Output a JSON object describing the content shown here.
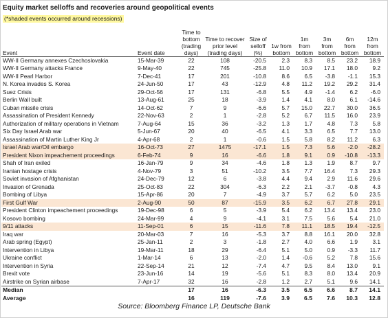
{
  "title": "Equity market selloffs and recoveries around geopolitical events",
  "note": "(*shaded events occurred around recessions)",
  "columns": {
    "event": "Event",
    "date": "Event date",
    "bottom": "Time to bottom (trading days)",
    "recover": "Time to recover prior level (trading days)",
    "size": "Size of selloff (%)",
    "w1": "1w from bottom",
    "m1": "1m from bottom",
    "m3": "3m from bottom",
    "m6": "6m from bottom",
    "m12": "12m from bottom"
  },
  "rows": [
    {
      "event": "WW-II Germany annexes Czechoslovakia",
      "date": "15-Mar-39",
      "bottom": "22",
      "recover": "108",
      "size": "-20.5",
      "w1": "2.3",
      "m1": "8.3",
      "m3": "8.5",
      "m6": "23.2",
      "m12": "18.9",
      "shaded": false
    },
    {
      "event": "WW-II Germany attacks France",
      "date": "9-May-40",
      "bottom": "22",
      "recover": "745",
      "size": "-25.8",
      "w1": "11.0",
      "m1": "10.9",
      "m3": "17.1",
      "m6": "18.0",
      "m12": "9.2",
      "shaded": false
    },
    {
      "event": "WW-II Pearl Harbor",
      "date": "7-Dec-41",
      "bottom": "17",
      "recover": "201",
      "size": "-10.8",
      "w1": "8.6",
      "m1": "6.5",
      "m3": "-3.8",
      "m6": "-1.1",
      "m12": "15.3",
      "shaded": false
    },
    {
      "event": "N. Korea invades S. Korea",
      "date": "24-Jun-50",
      "bottom": "17",
      "recover": "43",
      "size": "-12.9",
      "w1": "4.8",
      "m1": "11.2",
      "m3": "19.2",
      "m6": "29.2",
      "m12": "31.4",
      "shaded": false
    },
    {
      "event": "Suez Crisis",
      "date": "29-Oct-56",
      "bottom": "17",
      "recover": "131",
      "size": "-6.8",
      "w1": "5.5",
      "m1": "4.9",
      "m3": "-1.4",
      "m6": "6.2",
      "m12": "-6.0",
      "shaded": false
    },
    {
      "event": "Berlin Wall built",
      "date": "13-Aug-61",
      "bottom": "25",
      "recover": "18",
      "size": "-3.9",
      "w1": "1.4",
      "m1": "4.1",
      "m3": "8.0",
      "m6": "6.1",
      "m12": "-14.6",
      "shaded": false
    },
    {
      "event": "Cuban missile crisis",
      "date": "14-Oct-62",
      "bottom": "7",
      "recover": "9",
      "size": "-6.6",
      "w1": "5.7",
      "m1": "15.0",
      "m3": "22.7",
      "m6": "30.0",
      "m12": "36.5",
      "shaded": false
    },
    {
      "event": "Assassination of President Kennedy",
      "date": "22-Nov-63",
      "bottom": "2",
      "recover": "1",
      "size": "-2.8",
      "w1": "5.2",
      "m1": "6.7",
      "m3": "11.5",
      "m6": "16.0",
      "m12": "23.9",
      "shaded": false
    },
    {
      "event": "Authorization of military operations in Vietnam",
      "date": "7-Aug-64",
      "bottom": "15",
      "recover": "36",
      "size": "-3.2",
      "w1": "1.3",
      "m1": "1.7",
      "m3": "4.8",
      "m6": "7.3",
      "m12": "5.8",
      "shaded": false
    },
    {
      "event": "Six Day Israel Arab war",
      "date": "5-Jun-67",
      "bottom": "20",
      "recover": "40",
      "size": "-6.5",
      "w1": "4.1",
      "m1": "3.3",
      "m3": "6.5",
      "m6": "7.7",
      "m12": "13.0",
      "shaded": false
    },
    {
      "event": "Assassination of Martin Luther King Jr",
      "date": "4-Apr-68",
      "bottom": "2",
      "recover": "1",
      "size": "-0.6",
      "w1": "1.5",
      "m1": "5.8",
      "m3": "8.2",
      "m6": "11.2",
      "m12": "6.3",
      "shaded": false
    },
    {
      "event": "Israel Arab war/Oil embargo",
      "date": "16-Oct-73",
      "bottom": "27",
      "recover": "1475",
      "size": "-17.1",
      "w1": "1.5",
      "m1": "7.3",
      "m3": "5.6",
      "m6": "-2.0",
      "m12": "-28.2",
      "shaded": true
    },
    {
      "event": "President Nixon impeachement proceedings",
      "date": "6-Feb-74",
      "bottom": "9",
      "recover": "16",
      "size": "-6.6",
      "w1": "1.8",
      "m1": "9.1",
      "m3": "0.9",
      "m6": "-10.8",
      "m12": "-13.3",
      "shaded": true
    },
    {
      "event": "Shah of Iran exiled",
      "date": "16-Jan-79",
      "bottom": "9",
      "recover": "34",
      "size": "-4.6",
      "w1": "1.8",
      "m1": "1.3",
      "m3": "1.9",
      "m6": "8.7",
      "m12": "9.7",
      "shaded": false
    },
    {
      "event": "Iranian hostage crisis",
      "date": "4-Nov-79",
      "bottom": "3",
      "recover": "51",
      "size": "-10.2",
      "w1": "3.5",
      "m1": "7.7",
      "m3": "16.4",
      "m6": "7.3",
      "m12": "29.3",
      "shaded": false
    },
    {
      "event": "Soviet invasion of Afghanistan",
      "date": "24-Dec-79",
      "bottom": "12",
      "recover": "6",
      "size": "-3.8",
      "w1": "4.4",
      "m1": "9.4",
      "m3": "2.9",
      "m6": "11.6",
      "m12": "29.6",
      "shaded": false
    },
    {
      "event": "Invasion of Grenada",
      "date": "25-Oct-83",
      "bottom": "22",
      "recover": "304",
      "size": "-6.3",
      "w1": "2.2",
      "m1": "2.1",
      "m3": "-3.7",
      "m6": "-0.8",
      "m12": "4.3",
      "shaded": false
    },
    {
      "event": "Bombing of Libya",
      "date": "15-Apr-86",
      "bottom": "20",
      "recover": "7",
      "size": "-4.9",
      "w1": "3.7",
      "m1": "5.7",
      "m3": "6.2",
      "m6": "5.0",
      "m12": "23.5",
      "shaded": false
    },
    {
      "event": "First Gulf War",
      "date": "2-Aug-90",
      "bottom": "50",
      "recover": "87",
      "size": "-15.9",
      "w1": "3.5",
      "m1": "6.2",
      "m3": "6.7",
      "m6": "27.8",
      "m12": "29.1",
      "shaded": true
    },
    {
      "event": "President Clinton impeachement proceedings",
      "date": "19-Dec-98",
      "bottom": "6",
      "recover": "5",
      "size": "-3.9",
      "w1": "5.4",
      "m1": "6.2",
      "m3": "13.4",
      "m6": "13.4",
      "m12": "23.0",
      "shaded": false
    },
    {
      "event": "Kosovo bombing",
      "date": "24-Mar-99",
      "bottom": "4",
      "recover": "9",
      "size": "-4.1",
      "w1": "3.1",
      "m1": "7.5",
      "m3": "5.6",
      "m6": "5.4",
      "m12": "21.0",
      "shaded": false
    },
    {
      "event": "9/11 attacks",
      "date": "11-Sep-01",
      "bottom": "6",
      "recover": "15",
      "size": "-11.6",
      "w1": "7.8",
      "m1": "11.1",
      "m3": "18.5",
      "m6": "19.4",
      "m12": "-12.5",
      "shaded": true
    },
    {
      "event": "Iraq war",
      "date": "20-Mar-03",
      "bottom": "7",
      "recover": "16",
      "size": "-5.3",
      "w1": "3.7",
      "m1": "8.8",
      "m3": "16.1",
      "m6": "20.0",
      "m12": "32.8",
      "shaded": false
    },
    {
      "event": "Arab spring (Egypt)",
      "date": "25-Jan-11",
      "bottom": "2",
      "recover": "3",
      "size": "-1.8",
      "w1": "2.7",
      "m1": "4.0",
      "m3": "6.6",
      "m6": "1.9",
      "m12": "3.1",
      "shaded": false
    },
    {
      "event": "Intervention in Libya",
      "date": "19-Mar-11",
      "bottom": "18",
      "recover": "29",
      "size": "-6.4",
      "w1": "5.1",
      "m1": "5.0",
      "m3": "0.9",
      "m6": "-3.3",
      "m12": "11.7",
      "shaded": false
    },
    {
      "event": "Ukraine conflict",
      "date": "1-Mar-14",
      "bottom": "6",
      "recover": "13",
      "size": "-2.0",
      "w1": "1.4",
      "m1": "-0.6",
      "m3": "5.2",
      "m6": "7.8",
      "m12": "15.6",
      "shaded": false
    },
    {
      "event": "Intervention in Syria",
      "date": "22-Sep-14",
      "bottom": "21",
      "recover": "12",
      "size": "-7.4",
      "w1": "4.7",
      "m1": "9.5",
      "m3": "8.4",
      "m6": "13.0",
      "m12": "9.1",
      "shaded": false
    },
    {
      "event": "Brexit vote",
      "date": "23-Jun-16",
      "bottom": "14",
      "recover": "19",
      "size": "-5.6",
      "w1": "5.1",
      "m1": "8.3",
      "m3": "8.0",
      "m6": "13.4",
      "m12": "20.9",
      "shaded": false
    },
    {
      "event": "Airstrike on Syrian airbase",
      "date": "7-Apr-17",
      "bottom": "32",
      "recover": "16",
      "size": "-2.8",
      "w1": "1.2",
      "m1": "2.7",
      "m3": "5.1",
      "m6": "9.6",
      "m12": "14.1",
      "shaded": false
    }
  ],
  "summary": [
    {
      "label": "Median",
      "bottom": "17",
      "recover": "16",
      "size": "-6.3",
      "w1": "3.5",
      "m1": "6.5",
      "m3": "6.6",
      "m6": "8.7",
      "m12": "14.1"
    },
    {
      "label": "Average",
      "bottom": "16",
      "recover": "119",
      "size": "-7.6",
      "w1": "3.9",
      "m1": "6.5",
      "m3": "7.6",
      "m6": "10.3",
      "m12": "12.8"
    }
  ],
  "source": "Source: Bloomberg Finance LP, Deutsche Bank"
}
